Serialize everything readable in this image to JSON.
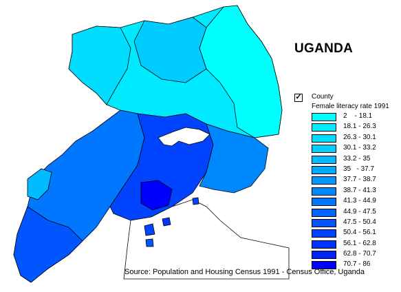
{
  "map": {
    "title": "UGANDA",
    "source": "Source: Population and Housing Census 1991 - Census Office, Uganda",
    "regions_shown": "Counties of Uganda shaded by female literacy rate; lakes shown in white"
  },
  "legend": {
    "layer_visible": true,
    "layer_name": "County",
    "subtitle": "Female literacy rate 1991",
    "classes": [
      {
        "label": "2    - 18.1",
        "color": "#00ffff"
      },
      {
        "label": "18.1 - 26.3",
        "color": "#00eeff"
      },
      {
        "label": "26.3 - 30.1",
        "color": "#00ddff"
      },
      {
        "label": "30.1 - 33.2",
        "color": "#00ccff"
      },
      {
        "label": "33.2 - 35",
        "color": "#00bbff"
      },
      {
        "label": "35   - 37.7",
        "color": "#00aaff"
      },
      {
        "label": "37.7 - 38.7",
        "color": "#0099ff"
      },
      {
        "label": "38.7 - 41.3",
        "color": "#0088ff"
      },
      {
        "label": "41.3 - 44.9",
        "color": "#0077ff"
      },
      {
        "label": "44.9 - 47.5",
        "color": "#0066ff"
      },
      {
        "label": "47.5 - 50.4",
        "color": "#0055ff"
      },
      {
        "label": "50.4 - 56.1",
        "color": "#0044ff"
      },
      {
        "label": "56.1 - 62.8",
        "color": "#0033ff"
      },
      {
        "label": "62.8 - 70.7",
        "color": "#0022ff"
      },
      {
        "label": "70.7 - 86",
        "color": "#0000ff"
      }
    ]
  },
  "colors": {
    "background": "#ffffff",
    "border": "#000000",
    "lake": "#ffffff"
  }
}
